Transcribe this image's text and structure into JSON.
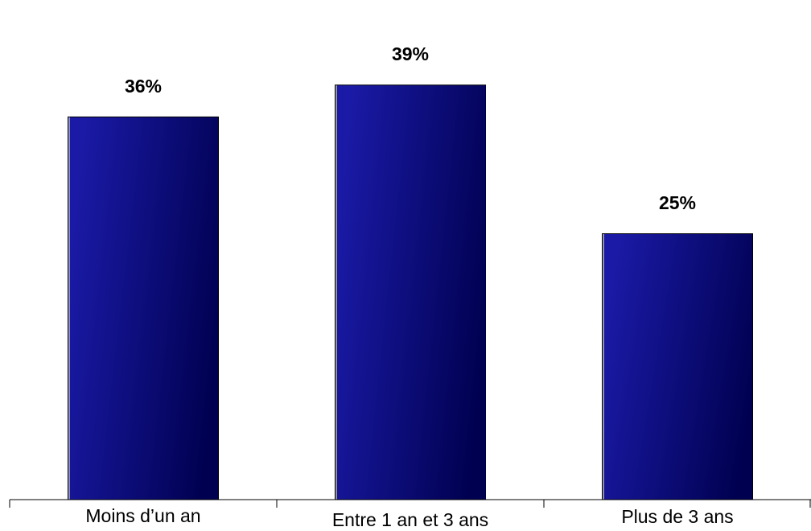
{
  "chart_data": {
    "type": "bar",
    "categories": [
      "Moins d’un an",
      "Entre 1 an et 3 ans",
      "Plus de 3 ans"
    ],
    "values": [
      36,
      39,
      25
    ],
    "data_labels": [
      "36%",
      "39%",
      "25%"
    ],
    "unit": "%",
    "title": "",
    "xlabel": "",
    "ylabel": "",
    "ylim": [
      0,
      43
    ],
    "grid": false,
    "legend": "none",
    "colors": {
      "bar_light": "#1a1aa6",
      "bar_dark": "#000050",
      "axis": "#000000",
      "text": "#000000"
    }
  }
}
